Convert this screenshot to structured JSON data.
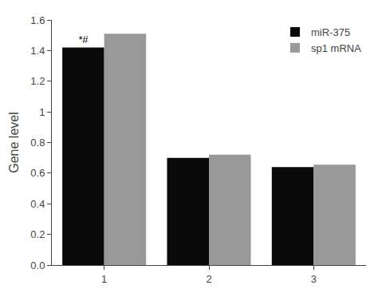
{
  "chart_data": {
    "type": "bar",
    "categories": [
      1,
      2,
      3
    ],
    "series": [
      {
        "name": "miR-375",
        "color": "#0a0a0a",
        "values": [
          1.42,
          0.7,
          0.64
        ]
      },
      {
        "name": "sp1 mRNA",
        "color": "#999999",
        "values": [
          1.51,
          0.72,
          0.655
        ]
      }
    ],
    "ylabel": "Gene level",
    "ylim": [
      0,
      1.6
    ],
    "yticks": [
      {
        "value": 0,
        "label": "0.0"
      },
      0.2,
      0.4,
      0.6,
      0.8,
      1,
      1.2,
      1.4,
      1.6
    ],
    "grid": false,
    "legend": "upper right",
    "annotations": [
      {
        "text": "*#",
        "category": 1,
        "series": "miR-375"
      }
    ]
  }
}
